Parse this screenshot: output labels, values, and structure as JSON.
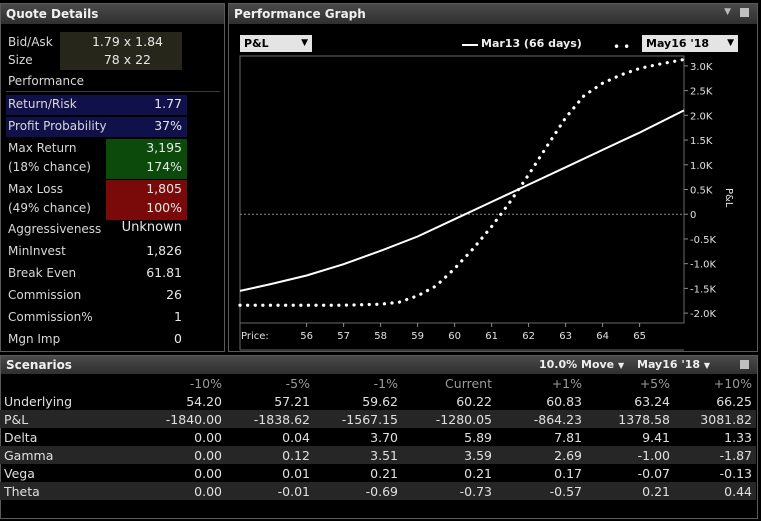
{
  "quote": {
    "title": "Quote Details",
    "bidask_label": "Bid/Ask",
    "bidask_value": "1.79 x 1.84",
    "size_label": "Size",
    "size_value": "78 x 22",
    "performance_label": "Performance",
    "return_risk_label": "Return/Risk",
    "return_risk_value": "1.77",
    "profit_prob_label": "Profit Probability",
    "profit_prob_value": "37%",
    "max_return_label": "Max Return",
    "max_return_value": "3,195",
    "max_return_chance_label": "(18% chance)",
    "max_return_pct": "174%",
    "max_loss_label": "Max Loss",
    "max_loss_value": "1,805",
    "max_loss_chance_label": "(49% chance)",
    "max_loss_pct": "100%",
    "aggressiveness_label": "Aggressiveness",
    "aggressiveness_value": "Unknown",
    "mininvest_label": "MinInvest",
    "mininvest_value": "1,826",
    "breakeven_label": "Break Even",
    "breakeven_value": "61.81",
    "commission_label": "Commission",
    "commission_value": "26",
    "commission_pct_label": "Commission%",
    "commission_pct_value": "1",
    "mgn_imp_label": "Mgn Imp",
    "mgn_imp_value": "0",
    "colors": {
      "blue_bg": "#10104a",
      "green_bg": "#0b4a0b",
      "red_bg": "#7a0a0a",
      "yellow_bg": "#26261a"
    }
  },
  "graph": {
    "title": "Performance Graph",
    "metric_dropdown": "P&L",
    "legend_line_label": "Mar13 (66 days)",
    "expiry_dropdown": "May16 '18",
    "price_label": "Price:",
    "ylabel": "P&L"
  },
  "chart_data": {
    "type": "line",
    "xlabel": "Price:",
    "ylabel": "P&L",
    "xlim": [
      54.2,
      66.2
    ],
    "ylim": [
      -2200,
      3200
    ],
    "x_ticks": [
      "56",
      "57",
      "58",
      "59",
      "60",
      "61",
      "62",
      "63",
      "64",
      "65"
    ],
    "x_tick_values": [
      56,
      57,
      58,
      59,
      60,
      61,
      62,
      63,
      64,
      65
    ],
    "y_ticks": [
      "3.0K",
      "2.5K",
      "2.0K",
      "1.5K",
      "1.0K",
      "0.5K",
      "0",
      "-0.5K",
      "-1.0K",
      "-1.5K",
      "-2.0K"
    ],
    "y_tick_values": [
      3000,
      2500,
      2000,
      1500,
      1000,
      500,
      0,
      -500,
      -1000,
      -1500,
      -2000
    ],
    "series": [
      {
        "name": "Mar13 (66 days)",
        "style": "solid",
        "color": "#ffffff",
        "x": [
          54.2,
          55,
          56,
          57,
          58,
          59,
          60,
          61,
          62,
          63,
          64,
          65,
          66.2
        ],
        "y": [
          -1550,
          -1420,
          -1240,
          -1010,
          -740,
          -450,
          -100,
          250,
          600,
          950,
          1300,
          1650,
          2100
        ]
      },
      {
        "name": "May16 '18",
        "style": "dotted",
        "color": "#ffffff",
        "x": [
          54.2,
          55,
          56,
          57,
          58,
          58.5,
          59,
          59.5,
          60,
          60.5,
          61,
          61.5,
          62,
          62.5,
          63,
          63.5,
          64,
          64.5,
          65,
          65.5,
          66.2
        ],
        "y": [
          -1840,
          -1840,
          -1840,
          -1840,
          -1820,
          -1780,
          -1650,
          -1450,
          -1100,
          -700,
          -250,
          250,
          800,
          1380,
          1950,
          2400,
          2650,
          2820,
          2950,
          3030,
          3130
        ]
      }
    ],
    "zero_line": true
  },
  "scenarios": {
    "title": "Scenarios",
    "move_dropdown": "10.0% Move",
    "expiry_dropdown": "May16 '18",
    "columns": [
      "",
      "-10%",
      "-5%",
      "-1%",
      "Current",
      "+1%",
      "+5%",
      "+10%"
    ],
    "rows": [
      {
        "label": "Underlying",
        "values": [
          "54.20",
          "57.21",
          "59.62",
          "60.22",
          "60.83",
          "63.24",
          "66.25"
        ]
      },
      {
        "label": "P&L",
        "values": [
          "-1840.00",
          "-1838.62",
          "-1567.15",
          "-1280.05",
          "-864.23",
          "1378.58",
          "3081.82"
        ]
      },
      {
        "label": "Delta",
        "values": [
          "0.00",
          "0.04",
          "3.70",
          "5.89",
          "7.81",
          "9.41",
          "1.33"
        ]
      },
      {
        "label": "Gamma",
        "values": [
          "0.00",
          "0.12",
          "3.51",
          "3.59",
          "2.69",
          "-1.00",
          "-1.87"
        ]
      },
      {
        "label": "Vega",
        "values": [
          "0.00",
          "0.01",
          "0.21",
          "0.21",
          "0.17",
          "-0.07",
          "-0.13"
        ]
      },
      {
        "label": "Theta",
        "values": [
          "0.00",
          "-0.01",
          "-0.69",
          "-0.73",
          "-0.57",
          "0.21",
          "0.44"
        ]
      }
    ]
  }
}
